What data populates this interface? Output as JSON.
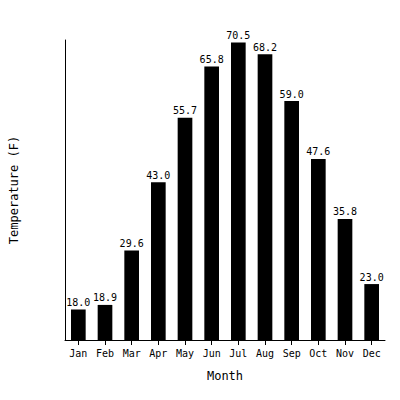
{
  "chart_data": {
    "type": "bar",
    "x_label": "Month",
    "y_label": "Temperature (F)",
    "categories": [
      "Jan",
      "Feb",
      "Mar",
      "Apr",
      "May",
      "Jun",
      "Jul",
      "Aug",
      "Sep",
      "Oct",
      "Nov",
      "Dec"
    ],
    "values": [
      18.0,
      18.9,
      29.6,
      43.0,
      55.7,
      65.8,
      70.5,
      68.2,
      59.0,
      47.6,
      35.8,
      23.0
    ],
    "value_labels": [
      "18.0",
      "18.9",
      "29.6",
      "43.0",
      "55.7",
      "65.8",
      "70.5",
      "68.2",
      "59.0",
      "47.6",
      "35.8",
      "23.0"
    ],
    "color": "#000000",
    "ylim": [
      12,
      71
    ],
    "grid": false,
    "data_labels": true,
    "tick_labels": "x"
  }
}
